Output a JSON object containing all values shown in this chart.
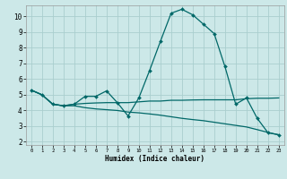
{
  "background_color": "#cce8e8",
  "grid_color": "#aacece",
  "line_color": "#006868",
  "xlabel": "Humidex (Indice chaleur)",
  "xlim": [
    -0.5,
    23.5
  ],
  "ylim": [
    1.8,
    10.7
  ],
  "yticks": [
    2,
    3,
    4,
    5,
    6,
    7,
    8,
    9,
    10
  ],
  "xticks": [
    0,
    1,
    2,
    3,
    4,
    5,
    6,
    7,
    8,
    9,
    10,
    11,
    12,
    13,
    14,
    15,
    16,
    17,
    18,
    19,
    20,
    21,
    22,
    23
  ],
  "line1_x": [
    0,
    1,
    2,
    3,
    4,
    5,
    6,
    7,
    8,
    9,
    10,
    11,
    12,
    13,
    14,
    15,
    16,
    17,
    18,
    19,
    20,
    21,
    22,
    23
  ],
  "line1_y": [
    5.3,
    5.0,
    4.4,
    4.3,
    4.4,
    4.9,
    4.9,
    5.25,
    4.5,
    3.65,
    4.8,
    6.55,
    8.4,
    10.2,
    10.45,
    10.1,
    9.5,
    8.9,
    6.8,
    4.4,
    4.8,
    3.5,
    2.58,
    2.45
  ],
  "line2_x": [
    0,
    1,
    2,
    3,
    4,
    5,
    6,
    7,
    8,
    9,
    10,
    11,
    12,
    13,
    14,
    15,
    16,
    17,
    18,
    19,
    20,
    21,
    22,
    23
  ],
  "line2_y": [
    5.3,
    5.0,
    4.4,
    4.3,
    4.4,
    4.45,
    4.48,
    4.5,
    4.5,
    4.5,
    4.55,
    4.6,
    4.6,
    4.65,
    4.65,
    4.67,
    4.68,
    4.68,
    4.68,
    4.68,
    4.75,
    4.78,
    4.78,
    4.8
  ],
  "line3_x": [
    0,
    1,
    2,
    3,
    4,
    5,
    6,
    7,
    8,
    9,
    10,
    11,
    12,
    13,
    14,
    15,
    16,
    17,
    18,
    19,
    20,
    21,
    22,
    23
  ],
  "line3_y": [
    5.3,
    5.0,
    4.4,
    4.3,
    4.3,
    4.18,
    4.1,
    4.05,
    4.0,
    3.9,
    3.85,
    3.78,
    3.7,
    3.6,
    3.5,
    3.42,
    3.35,
    3.25,
    3.15,
    3.05,
    2.95,
    2.78,
    2.6,
    2.45
  ]
}
